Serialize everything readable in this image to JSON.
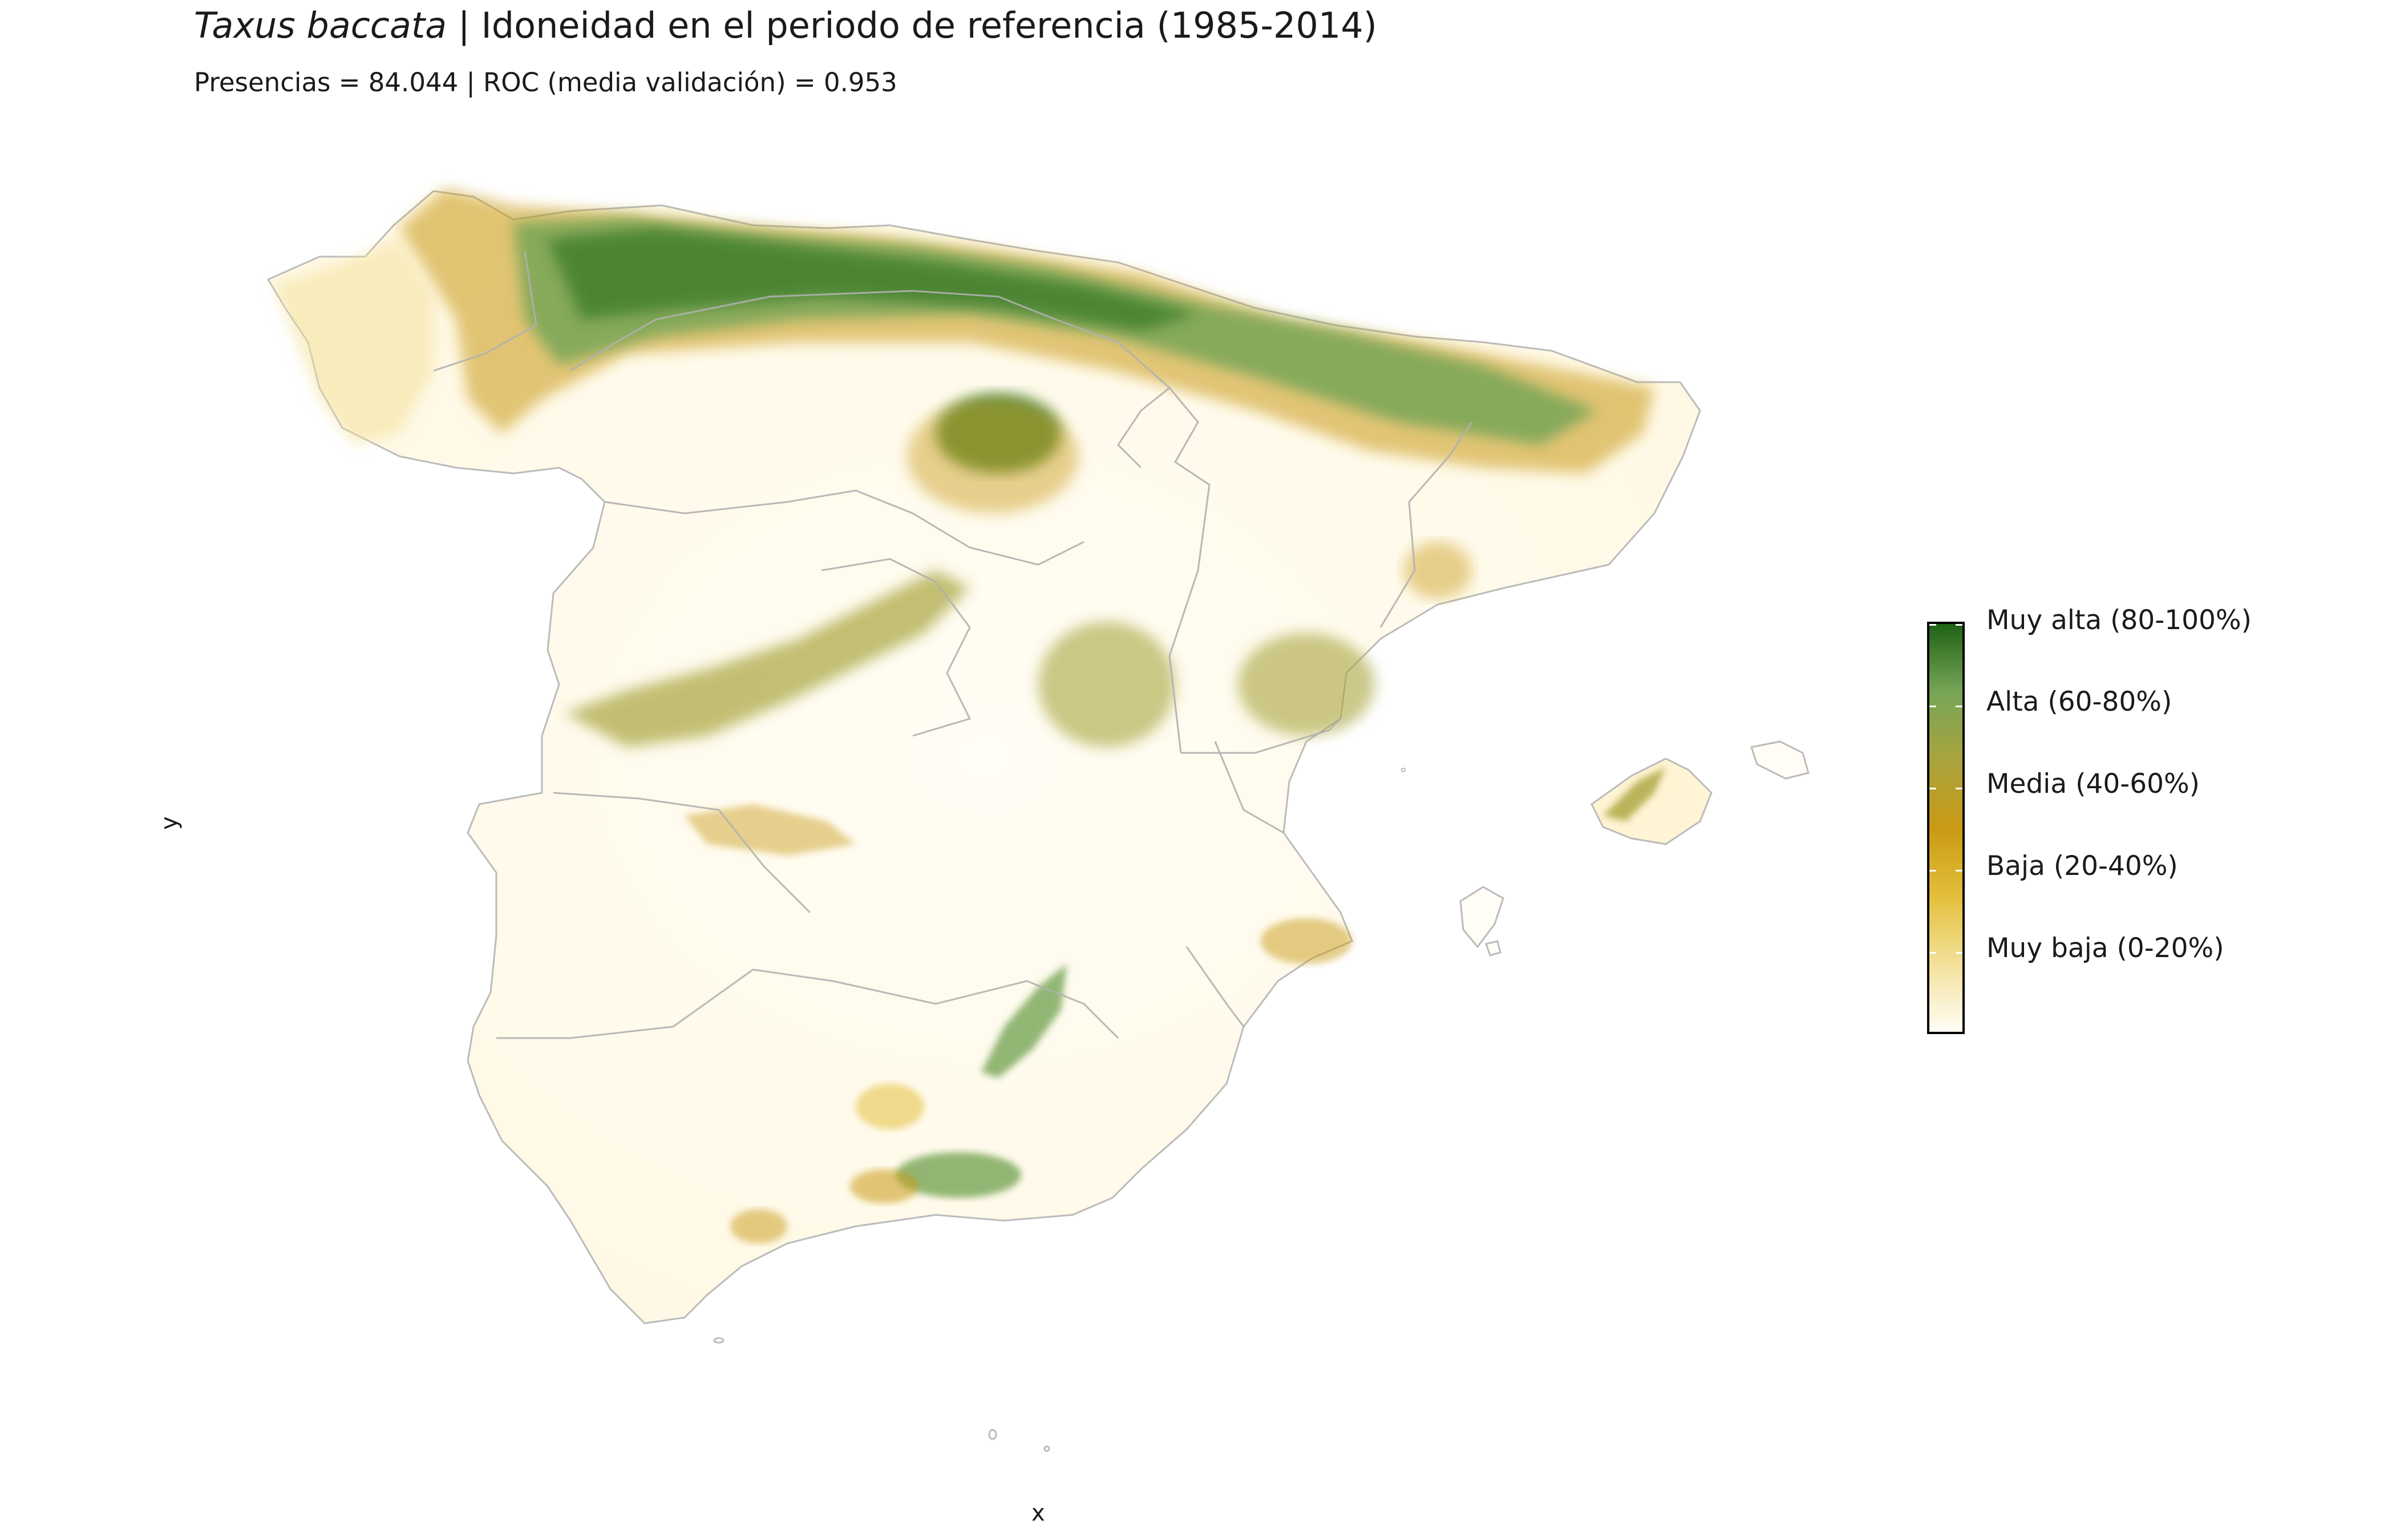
{
  "title": {
    "species": "Taxus baccata",
    "rest": " | Idoneidad en el periodo de referencia (1985-2014)"
  },
  "subtitle": "Presencias = 84.044  |  ROC (media validación) = 0.953",
  "axes": {
    "x": "x",
    "y": "y"
  },
  "legend": {
    "colors": [
      "#fffdf6",
      "#f3e19a",
      "#e3bf3a",
      "#c99a14",
      "#a9a43e",
      "#77a557",
      "#1f6216"
    ],
    "labels": [
      "Muy alta (80-100%)",
      "Alta (60-80%)",
      "Media (40-60%)",
      "Baja (20-40%)",
      "Muy baja (0-20%)"
    ]
  }
}
